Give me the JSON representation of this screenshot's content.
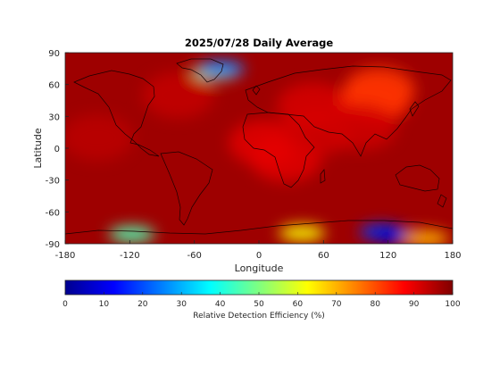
{
  "figure": {
    "title": "2025/07/28 Daily Average",
    "xlabel": "Longitude",
    "ylabel": "Latitude",
    "x_ticks": [
      "-180",
      "-120",
      "-60",
      "0",
      "60",
      "120",
      "180"
    ],
    "y_ticks": [
      "90",
      "60",
      "30",
      "0",
      "-30",
      "-60",
      "-90"
    ],
    "colorbar": {
      "label": "Relative Detection Efficiency (%)",
      "ticks": [
        "0",
        "10",
        "20",
        "30",
        "40",
        "50",
        "60",
        "70",
        "80",
        "90",
        "100"
      ],
      "colormap": "jet",
      "range": [
        0,
        100
      ]
    }
  },
  "chart_data": {
    "type": "heatmap",
    "projection": "equirectangular",
    "xlim": [
      -180,
      180
    ],
    "ylim": [
      -90,
      90
    ],
    "value_range": [
      0,
      100
    ],
    "background_value": 97,
    "regions": [
      {
        "lon": 5,
        "lat": 5,
        "value": 90
      },
      {
        "lon": 25,
        "lat": -10,
        "value": 90
      },
      {
        "lon": 55,
        "lat": 15,
        "value": 92
      },
      {
        "lon": 50,
        "lat": 40,
        "value": 91
      },
      {
        "lon": 108,
        "lat": 45,
        "value": 84
      },
      {
        "lon": 112,
        "lat": 55,
        "value": 82
      },
      {
        "lon": 95,
        "lat": 20,
        "value": 92
      },
      {
        "lon": -75,
        "lat": 50,
        "value": 93
      },
      {
        "lon": -150,
        "lat": 10,
        "value": 94
      },
      {
        "lon": -40,
        "lat": 72,
        "value": 55
      },
      {
        "lon": -35,
        "lat": 75,
        "value": 25
      },
      {
        "lon": -118,
        "lat": -81,
        "value": 45
      },
      {
        "lon": 40,
        "lat": -80,
        "value": 62
      },
      {
        "lon": 115,
        "lat": -79,
        "value": 18
      },
      {
        "lon": 125,
        "lat": -82,
        "value": 8
      },
      {
        "lon": 155,
        "lat": -85,
        "value": 70
      }
    ]
  }
}
